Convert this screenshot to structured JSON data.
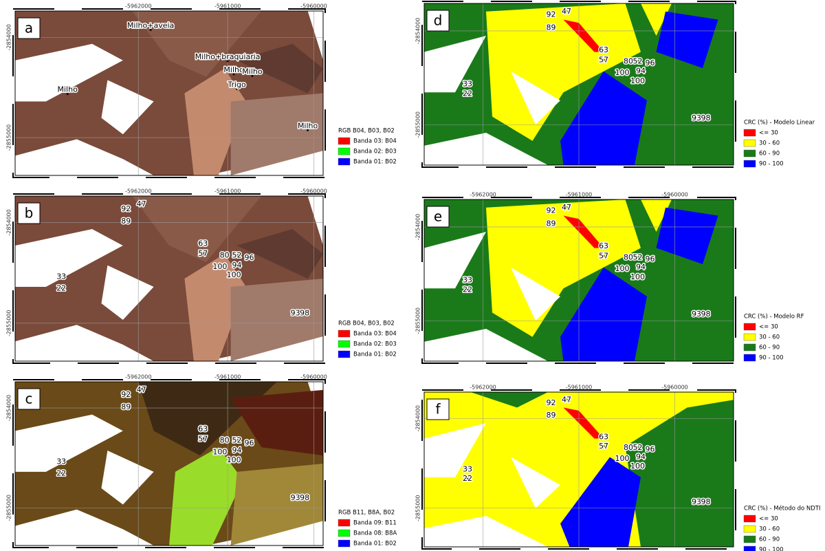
{
  "panels": [
    {
      "label": "a",
      "x_ticks": [
        "-5962000",
        "-5961000",
        "-5960000"
      ],
      "y_ticks": [
        "-2854000",
        "-2855000"
      ],
      "points": [
        "Milho+aveia",
        "Milho+braquiaria",
        "Milho",
        "Milho",
        "Trigo",
        "Milho",
        "Milho"
      ],
      "legend": {
        "title": "RGB B04, B03, B02",
        "items": [
          "Banda 03: B04",
          "Banda 02: B03",
          "Banda 01: B02"
        ]
      }
    },
    {
      "label": "b",
      "x_ticks": [
        "-5962000",
        "-5961000",
        "-5960000"
      ],
      "y_ticks": [
        "-2854000",
        "-2855000"
      ],
      "points": [
        "92",
        "47",
        "89",
        "63",
        "57",
        "80",
        "52",
        "96",
        "100",
        "94",
        "100",
        "33",
        "22",
        "93",
        "98"
      ],
      "legend": {
        "title": "RGB B04, B03, B02",
        "items": [
          "Banda 03: B04",
          "Banda 02: B03",
          "Banda 01: B02"
        ]
      }
    },
    {
      "label": "c",
      "x_ticks": [
        "-5962000",
        "-5961000",
        "-5960000"
      ],
      "y_ticks": [
        "-2854000",
        "-2855000"
      ],
      "points": [
        "92",
        "47",
        "89",
        "63",
        "57",
        "80",
        "52",
        "96",
        "100",
        "94",
        "100",
        "33",
        "22",
        "93",
        "98"
      ],
      "legend": {
        "title": "RGB B11, B8A, B02",
        "items": [
          "Banda 09: B11",
          "Banda 08: B8A",
          "Banda 01: B02"
        ]
      }
    },
    {
      "label": "d",
      "x_ticks": [],
      "y_ticks": [
        "-2854000",
        "-2855000"
      ],
      "points": [
        "92",
        "47",
        "89",
        "63",
        "57",
        "80",
        "52",
        "96",
        "100",
        "94",
        "100",
        "33",
        "22",
        "93",
        "98"
      ],
      "legend": {
        "title": "CRC (%) - Modelo Linear",
        "items": [
          "<= 30",
          "30 - 60",
          "60 - 90",
          "90 - 100"
        ]
      }
    },
    {
      "label": "e",
      "x_ticks": [
        "-5962000",
        "-5961000",
        "-5960000"
      ],
      "y_ticks": [
        "-2854000",
        "-2855000"
      ],
      "points": [
        "92",
        "47",
        "89",
        "63",
        "57",
        "80",
        "52",
        "96",
        "100",
        "94",
        "100",
        "33",
        "22",
        "93",
        "98"
      ],
      "legend": {
        "title": "CRC (%) - Modelo RF",
        "items": [
          "<= 30",
          "30 - 60",
          "60 - 90",
          "90 - 100"
        ]
      }
    },
    {
      "label": "f",
      "x_ticks": [
        "-5962000",
        "-5961000",
        "-5960000"
      ],
      "y_ticks": [
        "-2854000",
        "-2855000"
      ],
      "points": [
        "92",
        "47",
        "89",
        "63",
        "57",
        "80",
        "52",
        "96",
        "100",
        "94",
        "100",
        "33",
        "22",
        "93",
        "98"
      ],
      "legend": {
        "title": "CRC (%) - Método do NDTI",
        "items": [
          "<= 30",
          "30 - 60",
          "60 - 90",
          "90 - 100"
        ]
      }
    }
  ]
}
